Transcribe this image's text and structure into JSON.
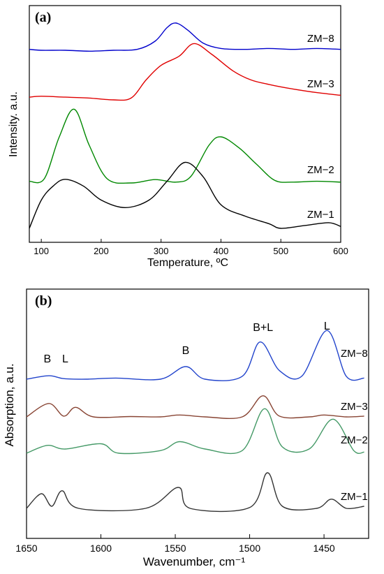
{
  "chart_data": [
    {
      "type": "line",
      "panel_label": "(a)",
      "xlabel": "Temperature, ºC",
      "ylabel": "Intensity. a.u.",
      "xlim": [
        80,
        600
      ],
      "xticks": [
        "100",
        "200",
        "300",
        "400",
        "500",
        "600"
      ],
      "yticks": false,
      "grid": false,
      "legend": "series labels inline at right end of each curve",
      "series": [
        {
          "name": "ZM−8",
          "color": "#0000cc",
          "x": [
            80,
            100,
            140,
            180,
            220,
            260,
            290,
            310,
            325,
            345,
            370,
            400,
            440,
            480,
            520,
            560,
            600
          ],
          "y": [
            0.01,
            0.0,
            0.0,
            -0.01,
            0.0,
            0.01,
            0.1,
            0.25,
            0.3,
            0.22,
            0.08,
            0.02,
            0.01,
            0.02,
            0.01,
            0.02,
            0.01
          ]
        },
        {
          "name": "ZM−3",
          "color": "#e00000",
          "x": [
            80,
            100,
            140,
            180,
            220,
            250,
            275,
            300,
            330,
            355,
            385,
            420,
            450,
            480,
            520,
            560,
            600
          ],
          "y": [
            0.03,
            0.04,
            0.03,
            0.02,
            0.0,
            0.02,
            0.22,
            0.38,
            0.48,
            0.62,
            0.5,
            0.32,
            0.22,
            0.17,
            0.12,
            0.08,
            0.05
          ]
        },
        {
          "name": "ZM−2",
          "color": "#008800",
          "x": [
            80,
            105,
            130,
            155,
            180,
            210,
            250,
            290,
            325,
            350,
            380,
            400,
            430,
            460,
            490,
            520,
            560,
            600
          ],
          "y": [
            0.02,
            0.05,
            0.55,
            0.88,
            0.45,
            0.05,
            0.0,
            0.04,
            0.01,
            0.08,
            0.45,
            0.55,
            0.42,
            0.22,
            0.03,
            0.01,
            0.02,
            0.01
          ]
        },
        {
          "name": "ZM−1",
          "color": "#000000",
          "x": [
            80,
            100,
            120,
            140,
            170,
            200,
            240,
            280,
            310,
            340,
            370,
            400,
            440,
            480,
            500,
            540,
            580,
            600
          ],
          "y": [
            0.0,
            0.3,
            0.45,
            0.52,
            0.45,
            0.3,
            0.22,
            0.3,
            0.5,
            0.7,
            0.55,
            0.25,
            0.13,
            0.05,
            0.0,
            0.03,
            0.06,
            0.02
          ]
        }
      ]
    },
    {
      "type": "line",
      "panel_label": "(b)",
      "xlabel": "Wavenumber, cm⁻¹",
      "ylabel": "Absorption, a.u.",
      "xlim": [
        1650,
        1420
      ],
      "xticks": [
        "1650",
        "1600",
        "1550",
        "1500",
        "1450"
      ],
      "yticks": false,
      "grid": false,
      "legend": "series labels inline at right end of each curve",
      "band_labels": [
        "B",
        "L",
        "B",
        "B+L",
        "L"
      ],
      "series": [
        {
          "name": "ZM−8",
          "color": "#2244cc",
          "x": [
            1650,
            1635,
            1625,
            1610,
            1590,
            1560,
            1543,
            1530,
            1505,
            1493,
            1480,
            1465,
            1448,
            1435,
            1423
          ],
          "y": [
            0.0,
            0.06,
            0.01,
            0.0,
            0.02,
            0.0,
            0.22,
            0.0,
            0.05,
            0.65,
            0.15,
            0.05,
            0.85,
            0.05,
            0.02
          ]
        },
        {
          "name": "ZM−3",
          "color": "#884433",
          "x": [
            1650,
            1635,
            1625,
            1617,
            1605,
            1580,
            1560,
            1547,
            1530,
            1505,
            1491,
            1480,
            1460,
            1450,
            1435,
            1423
          ],
          "y": [
            0.0,
            0.35,
            0.02,
            0.25,
            0.0,
            0.01,
            0.0,
            0.05,
            0.0,
            0.0,
            0.55,
            0.02,
            0.0,
            0.05,
            0.0,
            0.02
          ]
        },
        {
          "name": "ZM−2",
          "color": "#449966",
          "x": [
            1650,
            1636,
            1624,
            1600,
            1588,
            1560,
            1547,
            1530,
            1505,
            1490,
            1478,
            1460,
            1444,
            1430,
            1423
          ],
          "y": [
            0.0,
            0.15,
            0.08,
            0.18,
            0.0,
            0.05,
            0.22,
            0.08,
            0.05,
            0.85,
            0.12,
            0.08,
            0.65,
            0.05,
            0.02
          ]
        },
        {
          "name": "ZM−1",
          "color": "#333333",
          "x": [
            1650,
            1640,
            1633,
            1626,
            1615,
            1570,
            1548,
            1540,
            1500,
            1488,
            1478,
            1455,
            1445,
            1435,
            1423
          ],
          "y": [
            0.0,
            0.35,
            0.05,
            0.42,
            0.0,
            0.0,
            0.5,
            0.0,
            0.02,
            0.85,
            0.05,
            0.0,
            0.22,
            0.0,
            0.05
          ]
        }
      ]
    }
  ]
}
